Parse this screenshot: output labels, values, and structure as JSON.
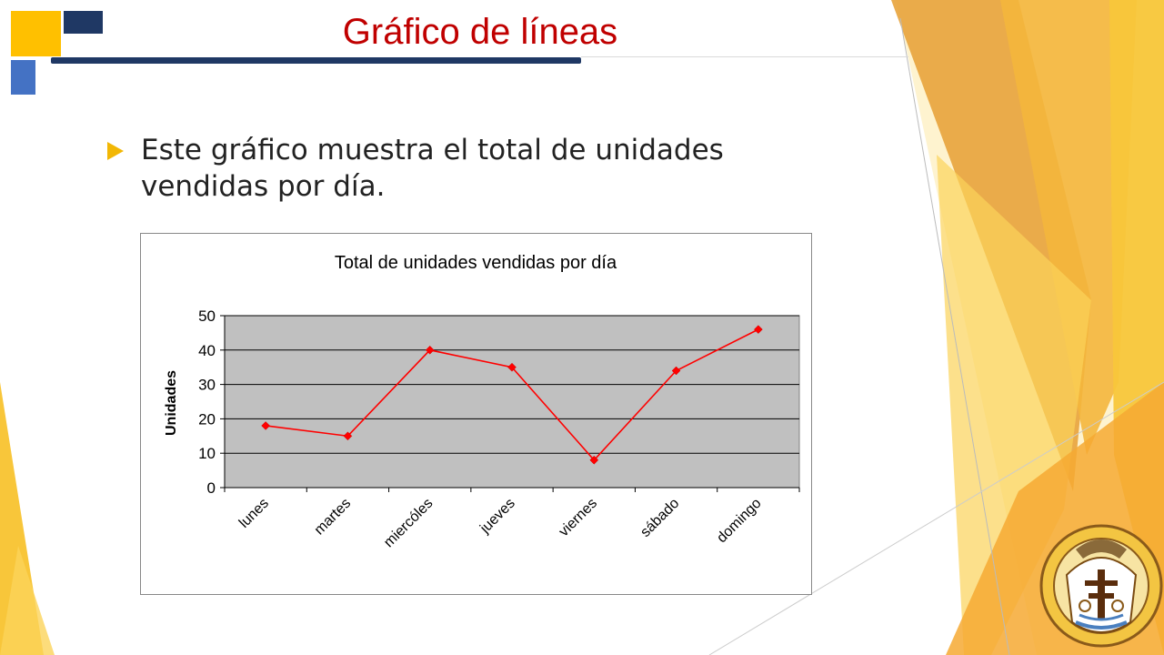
{
  "slide": {
    "title": "Gráfico de líneas",
    "bullet": "Este gráfico muestra el total de unidades vendidas por día."
  },
  "colors": {
    "title": "#c00000",
    "accent_yellow": "#ffc000",
    "accent_navy": "#1f3864",
    "accent_blue": "#4472c4",
    "bullet_arrow": "#f2b705",
    "series_line": "#ff0000",
    "plot_area": "#c0c0c0"
  },
  "icons": {
    "bullet": "triangle-arrow-right-icon",
    "logo": "university-crest-icon"
  },
  "chart_data": {
    "type": "line",
    "title": "Total de unidades vendidas por día",
    "xlabel": "",
    "ylabel": "Unidades",
    "categories": [
      "lunes",
      "martes",
      "miercóles",
      "jueves",
      "viernes",
      "sábado",
      "domingo"
    ],
    "series": [
      {
        "values": [
          18,
          15,
          40,
          35,
          8,
          34,
          46
        ]
      }
    ],
    "ylim": [
      0,
      50
    ],
    "yticks": [
      0,
      10,
      20,
      30,
      40,
      50
    ],
    "grid": true,
    "legend": "none"
  }
}
